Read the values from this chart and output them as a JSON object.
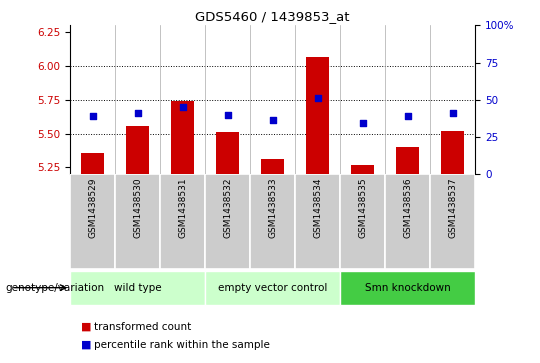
{
  "title": "GDS5460 / 1439853_at",
  "samples": [
    "GSM1438529",
    "GSM1438530",
    "GSM1438531",
    "GSM1438532",
    "GSM1438533",
    "GSM1438534",
    "GSM1438535",
    "GSM1438536",
    "GSM1438537"
  ],
  "transformed_counts": [
    5.36,
    5.56,
    5.74,
    5.51,
    5.31,
    6.07,
    5.27,
    5.4,
    5.52
  ],
  "percentile_ranks": [
    5.63,
    5.65,
    5.7,
    5.64,
    5.6,
    5.76,
    5.58,
    5.63,
    5.65
  ],
  "ylim": [
    5.2,
    6.3
  ],
  "yticks_left": [
    5.25,
    5.5,
    5.75,
    6.0,
    6.25
  ],
  "yticks_right_pct": [
    0,
    25,
    50,
    75,
    100
  ],
  "yticks_right_labels": [
    "0",
    "25",
    "50",
    "75",
    "100%"
  ],
  "bar_color": "#cc0000",
  "dot_color": "#0000cc",
  "group_labels": [
    "wild type",
    "empty vector control",
    "Smn knockdown"
  ],
  "group_ranges": [
    [
      0,
      3
    ],
    [
      3,
      6
    ],
    [
      6,
      9
    ]
  ],
  "group_colors": [
    "#ccffcc",
    "#ccffcc",
    "#44cc44"
  ],
  "legend_label_red": "transformed count",
  "legend_label_blue": "percentile rank within the sample",
  "genotype_label": "genotype/variation",
  "sample_box_color": "#cccccc",
  "plot_bg": "#ffffff",
  "bar_width": 0.5
}
